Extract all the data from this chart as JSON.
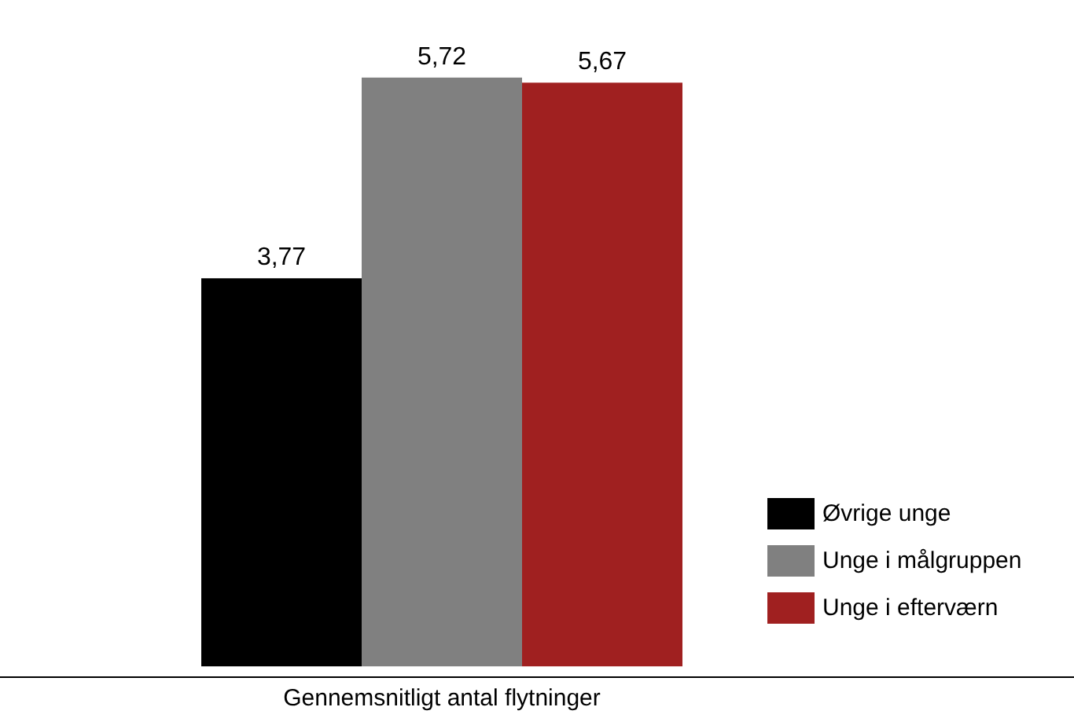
{
  "chart_data": {
    "type": "bar",
    "xlabel": "Gennemsnitligt antal flytninger",
    "categories": [
      null,
      null,
      null
    ],
    "stacked": true,
    "series": [
      {
        "name": "Øvrige unge",
        "color": "#000000",
        "values": [
          3.77,
          null,
          null
        ],
        "value_labels": [
          "3,77",
          null,
          null
        ]
      },
      {
        "name": "Unge i målgruppen",
        "color": "#808080",
        "values": [
          null,
          5.72,
          null
        ],
        "value_labels": [
          null,
          "5,72",
          null
        ]
      },
      {
        "name": "Unge i efterværn",
        "color": "#a02020",
        "values": [
          null,
          null,
          5.67
        ],
        "value_labels": [
          null,
          null,
          "5,67"
        ]
      }
    ],
    "legend": "right",
    "grid": false,
    "tick_labels": "x"
  }
}
